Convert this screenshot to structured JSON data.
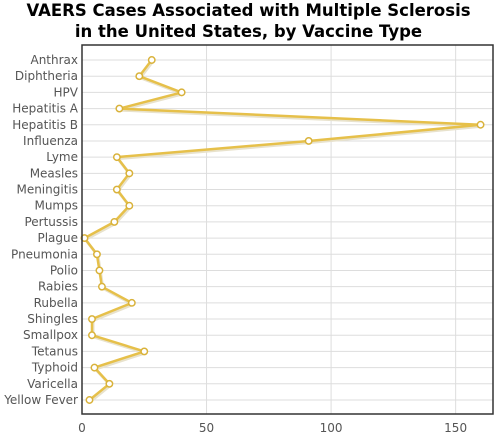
{
  "chart_data": {
    "type": "line",
    "title_lines": [
      "VAERS Cases Associated with Multiple Sclerosis",
      "in the United States, by Vaccine Type"
    ],
    "xlabel": "",
    "ylabel": "",
    "orientation": "horizontal",
    "categories": [
      "Anthrax",
      "Diphtheria",
      "HPV",
      "Hepatitis A",
      "Hepatitis B",
      "Influenza",
      "Lyme",
      "Measles",
      "Meningitis",
      "Mumps",
      "Pertussis",
      "Plague",
      "Pneumonia",
      "Polio",
      "Rabies",
      "Rubella",
      "Shingles",
      "Smallpox",
      "Tetanus",
      "Typhoid",
      "Varicella",
      "Yellow Fever"
    ],
    "values": [
      28,
      23,
      40,
      15,
      160,
      91,
      14,
      19,
      14,
      19,
      13,
      1,
      6,
      7,
      8,
      20,
      4,
      4,
      25,
      5,
      11,
      3
    ],
    "xlim": [
      0,
      165
    ],
    "x_ticks": [
      0,
      50,
      100,
      150
    ],
    "x_tick_labels": [
      "0",
      "50",
      "100",
      "150"
    ],
    "grid": true,
    "colors": {
      "line": "#e6c04a",
      "line_shadow": "#e8e2cc",
      "marker_fill": "#ffffff",
      "marker_stroke": "#d9b23a",
      "grid": "#dddddd",
      "frame": "#333333"
    }
  }
}
